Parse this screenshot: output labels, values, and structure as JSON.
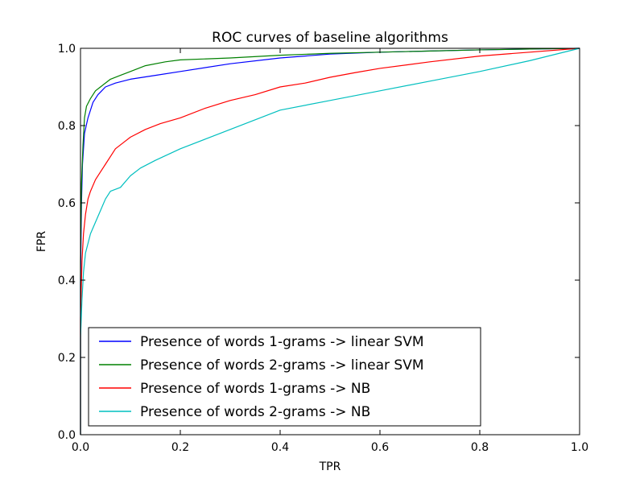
{
  "chart_data": {
    "type": "line",
    "title": "ROC curves of baseline algorithms",
    "xlabel": "TPR",
    "ylabel": "FPR",
    "xlim": [
      0.0,
      1.0
    ],
    "ylim": [
      0.0,
      1.0
    ],
    "xticks": [
      "0.0",
      "0.2",
      "0.4",
      "0.6",
      "0.8",
      "1.0"
    ],
    "yticks": [
      "0.0",
      "0.2",
      "0.4",
      "0.6",
      "0.8",
      "1.0"
    ],
    "grid": false,
    "legend_position": "lower-left",
    "series": [
      {
        "name": "Presence of words 1-grams -> linear SVM",
        "color": "#0000ff",
        "points": [
          [
            0.0,
            0.0
          ],
          [
            0.0,
            0.4
          ],
          [
            0.002,
            0.6
          ],
          [
            0.004,
            0.7
          ],
          [
            0.008,
            0.78
          ],
          [
            0.015,
            0.82
          ],
          [
            0.025,
            0.86
          ],
          [
            0.035,
            0.88
          ],
          [
            0.05,
            0.9
          ],
          [
            0.07,
            0.91
          ],
          [
            0.1,
            0.92
          ],
          [
            0.15,
            0.93
          ],
          [
            0.2,
            0.94
          ],
          [
            0.3,
            0.96
          ],
          [
            0.4,
            0.975
          ],
          [
            0.5,
            0.985
          ],
          [
            0.6,
            0.99
          ],
          [
            0.7,
            0.993
          ],
          [
            0.8,
            0.996
          ],
          [
            0.9,
            0.998
          ],
          [
            1.0,
            1.0
          ]
        ]
      },
      {
        "name": "Presence of words 2-grams -> linear SVM",
        "color": "#008000",
        "points": [
          [
            0.0,
            0.0
          ],
          [
            0.0,
            0.45
          ],
          [
            0.002,
            0.65
          ],
          [
            0.005,
            0.75
          ],
          [
            0.008,
            0.82
          ],
          [
            0.012,
            0.85
          ],
          [
            0.02,
            0.87
          ],
          [
            0.03,
            0.89
          ],
          [
            0.04,
            0.9
          ],
          [
            0.06,
            0.92
          ],
          [
            0.08,
            0.93
          ],
          [
            0.1,
            0.94
          ],
          [
            0.13,
            0.955
          ],
          [
            0.17,
            0.965
          ],
          [
            0.2,
            0.97
          ],
          [
            0.3,
            0.975
          ],
          [
            0.4,
            0.982
          ],
          [
            0.5,
            0.987
          ],
          [
            0.6,
            0.99
          ],
          [
            0.7,
            0.993
          ],
          [
            0.8,
            0.996
          ],
          [
            0.9,
            0.998
          ],
          [
            1.0,
            1.0
          ]
        ]
      },
      {
        "name": "Presence of words 1-grams -> NB",
        "color": "#ff0000",
        "points": [
          [
            0.0,
            0.0
          ],
          [
            0.0,
            0.3
          ],
          [
            0.003,
            0.45
          ],
          [
            0.006,
            0.52
          ],
          [
            0.01,
            0.57
          ],
          [
            0.015,
            0.61
          ],
          [
            0.02,
            0.63
          ],
          [
            0.03,
            0.66
          ],
          [
            0.04,
            0.68
          ],
          [
            0.05,
            0.7
          ],
          [
            0.06,
            0.72
          ],
          [
            0.07,
            0.74
          ],
          [
            0.09,
            0.76
          ],
          [
            0.1,
            0.77
          ],
          [
            0.13,
            0.79
          ],
          [
            0.16,
            0.805
          ],
          [
            0.2,
            0.82
          ],
          [
            0.25,
            0.845
          ],
          [
            0.3,
            0.865
          ],
          [
            0.35,
            0.88
          ],
          [
            0.4,
            0.9
          ],
          [
            0.45,
            0.91
          ],
          [
            0.5,
            0.925
          ],
          [
            0.55,
            0.937
          ],
          [
            0.6,
            0.948
          ],
          [
            0.7,
            0.965
          ],
          [
            0.8,
            0.98
          ],
          [
            0.9,
            0.99
          ],
          [
            1.0,
            1.0
          ]
        ]
      },
      {
        "name": "Presence of words 2-grams -> NB",
        "color": "#00bfbf",
        "points": [
          [
            0.0,
            0.0
          ],
          [
            0.0,
            0.25
          ],
          [
            0.003,
            0.35
          ],
          [
            0.006,
            0.42
          ],
          [
            0.01,
            0.47
          ],
          [
            0.02,
            0.52
          ],
          [
            0.03,
            0.55
          ],
          [
            0.04,
            0.58
          ],
          [
            0.05,
            0.61
          ],
          [
            0.06,
            0.63
          ],
          [
            0.08,
            0.64
          ],
          [
            0.1,
            0.67
          ],
          [
            0.12,
            0.69
          ],
          [
            0.15,
            0.71
          ],
          [
            0.2,
            0.74
          ],
          [
            0.25,
            0.765
          ],
          [
            0.3,
            0.79
          ],
          [
            0.35,
            0.815
          ],
          [
            0.4,
            0.84
          ],
          [
            0.5,
            0.865
          ],
          [
            0.6,
            0.89
          ],
          [
            0.7,
            0.915
          ],
          [
            0.8,
            0.94
          ],
          [
            0.9,
            0.968
          ],
          [
            1.0,
            1.0
          ]
        ]
      }
    ]
  }
}
